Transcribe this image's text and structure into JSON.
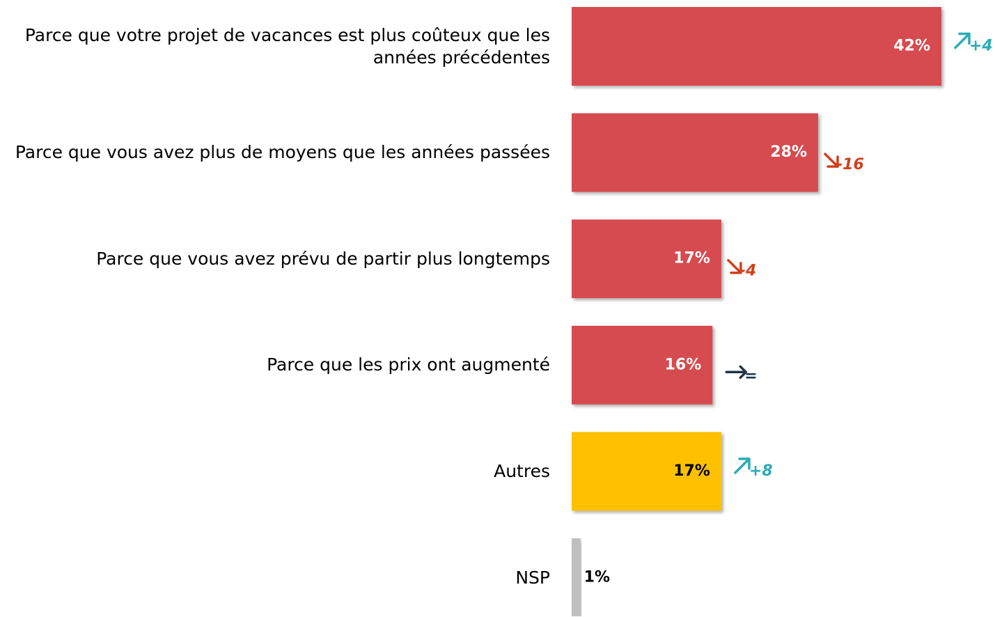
{
  "chart_data": {
    "type": "bar",
    "orientation": "horizontal",
    "categories": [
      "Parce que votre projet de vacances est plus coûteux que les années précédentes",
      "Parce que vous avez plus de moyens que les années passées",
      "Parce que vous avez prévu de partir plus longtemps",
      "Parce que les prix ont augmenté",
      "Autres",
      "NSP"
    ],
    "values": [
      42,
      28,
      17,
      16,
      17,
      1
    ],
    "value_labels": [
      "42%",
      "28%",
      "17%",
      "16%",
      "17%",
      "1%"
    ],
    "colors": [
      "#d64c4f",
      "#d64c4f",
      "#d64c4f",
      "#d64c4f",
      "#ffc000",
      "#bfbfbf"
    ],
    "label_colors": [
      "#ffffff",
      "#ffffff",
      "#ffffff",
      "#ffffff",
      "#000000",
      "#000000"
    ],
    "changes": [
      4,
      -16,
      -4,
      0,
      8,
      null
    ],
    "change_labels": [
      "+4",
      "-16",
      "-4",
      "=",
      "+8",
      null
    ],
    "change_colors": {
      "up": "#2aabb8",
      "down": "#d0401b",
      "flat": "#1f3548"
    }
  }
}
